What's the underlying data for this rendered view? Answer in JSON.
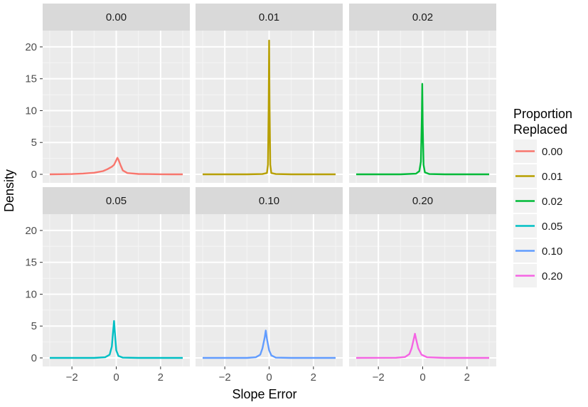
{
  "chart_data": {
    "type": "line",
    "subtype": "faceted-density",
    "xlabel": "Slope Error",
    "ylabel": "Density",
    "xlim": [
      -3,
      3
    ],
    "ylim": [
      0,
      22
    ],
    "x_ticks": [
      -2,
      0,
      2
    ],
    "x_tick_labels": [
      "−2",
      "0",
      "2"
    ],
    "y_ticks": [
      0,
      5,
      10,
      15,
      20
    ],
    "y_tick_labels": [
      "0",
      "5",
      "10",
      "15",
      "20"
    ],
    "grid": true,
    "legend": {
      "title_lines": [
        "Proportion",
        "Replaced"
      ],
      "placement": "right",
      "entries": [
        "0.00",
        "0.01",
        "0.02",
        "0.05",
        "0.10",
        "0.20"
      ]
    },
    "series": [
      {
        "name": "0.00",
        "color": "#F8766D",
        "center": 0.05,
        "peak": 2.6,
        "width": 0.12,
        "x": [
          -3,
          -2.5,
          -2,
          -1.5,
          -1.0,
          -0.6,
          -0.4,
          -0.2,
          -0.1,
          0.0,
          0.05,
          0.1,
          0.2,
          0.3,
          0.5,
          1.0,
          1.5,
          2,
          2.5,
          3
        ],
        "y": [
          0.0,
          0.02,
          0.05,
          0.12,
          0.25,
          0.5,
          0.8,
          1.2,
          1.5,
          2.2,
          2.6,
          2.3,
          1.4,
          0.6,
          0.2,
          0.06,
          0.03,
          0.01,
          0.0,
          0.0
        ]
      },
      {
        "name": "0.01",
        "color": "#B79F00",
        "center": 0.0,
        "peak": 21.0,
        "width": 0.02,
        "x": [
          -3,
          -1,
          -0.3,
          -0.1,
          -0.05,
          -0.02,
          0.0,
          0.02,
          0.05,
          0.1,
          0.3,
          1,
          3
        ],
        "y": [
          0.0,
          0.0,
          0.05,
          0.2,
          1.5,
          11,
          21,
          11,
          1.5,
          0.2,
          0.05,
          0.0,
          0.0
        ]
      },
      {
        "name": "0.02",
        "color": "#00BA38",
        "center": -0.02,
        "peak": 14.2,
        "width": 0.03,
        "x": [
          -3,
          -1,
          -0.3,
          -0.15,
          -0.08,
          -0.04,
          -0.02,
          0.0,
          0.04,
          0.1,
          0.3,
          1,
          3
        ],
        "y": [
          0.0,
          0.0,
          0.1,
          0.5,
          2.0,
          9,
          14.2,
          8,
          1.5,
          0.3,
          0.05,
          0.0,
          0.0
        ]
      },
      {
        "name": "0.05",
        "color": "#00BFC4",
        "center": -0.1,
        "peak": 5.8,
        "width": 0.07,
        "x": [
          -3,
          -1,
          -0.5,
          -0.3,
          -0.2,
          -0.15,
          -0.1,
          -0.05,
          0.0,
          0.1,
          0.3,
          1,
          3
        ],
        "y": [
          0.0,
          0.0,
          0.1,
          0.5,
          1.8,
          3.8,
          5.8,
          3.5,
          1.2,
          0.3,
          0.05,
          0.0,
          0.0
        ]
      },
      {
        "name": "0.10",
        "color": "#619CFF",
        "center": -0.15,
        "peak": 4.3,
        "width": 0.1,
        "x": [
          -3,
          -1,
          -0.6,
          -0.4,
          -0.3,
          -0.2,
          -0.15,
          -0.1,
          0.0,
          0.1,
          0.3,
          1,
          3
        ],
        "y": [
          0.0,
          0.0,
          0.1,
          0.5,
          1.5,
          3.2,
          4.3,
          3.0,
          1.2,
          0.4,
          0.05,
          0.0,
          0.0
        ]
      },
      {
        "name": "0.20",
        "color": "#F564E3",
        "center": -0.35,
        "peak": 3.8,
        "width": 0.12,
        "x": [
          -3,
          -1.2,
          -0.8,
          -0.6,
          -0.5,
          -0.4,
          -0.35,
          -0.3,
          -0.2,
          -0.05,
          0.2,
          1,
          3
        ],
        "y": [
          0.0,
          0.02,
          0.15,
          0.6,
          1.5,
          3.0,
          3.8,
          3.0,
          1.5,
          0.5,
          0.1,
          0.0,
          0.0
        ]
      }
    ],
    "facets": [
      "0.00",
      "0.01",
      "0.02",
      "0.05",
      "0.10",
      "0.20"
    ]
  }
}
